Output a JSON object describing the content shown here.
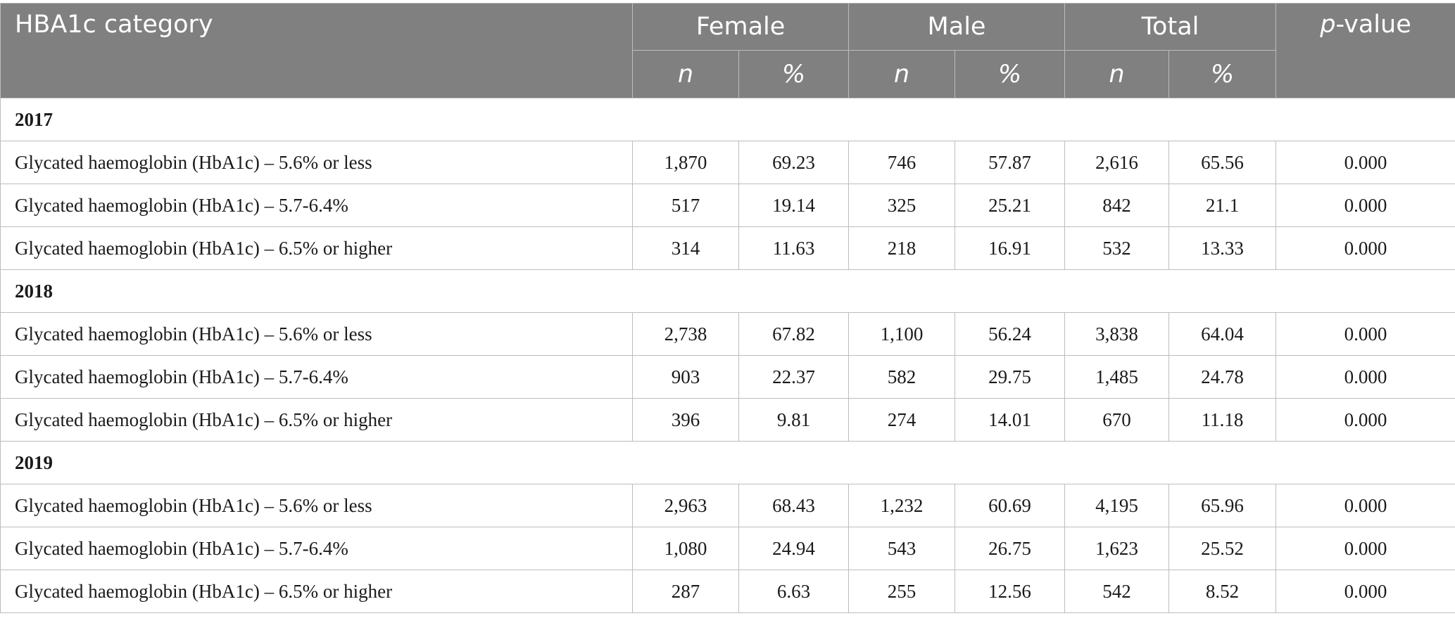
{
  "headers": {
    "category": "HBA1c category",
    "female": "Female",
    "male": "Male",
    "total": "Total",
    "pvalue_p": "p",
    "pvalue_rest": "-value",
    "n": "n",
    "pct": "%"
  },
  "groups": [
    {
      "year": "2017",
      "rows": [
        {
          "label": "Glycated haemoglobin (HbA1c) – 5.6% or less",
          "f_n": "1,870",
          "f_pct": "69.23",
          "m_n": "746",
          "m_pct": "57.87",
          "t_n": "2,616",
          "t_pct": "65.56",
          "p": "0.000"
        },
        {
          "label": "Glycated haemoglobin (HbA1c) – 5.7-6.4%",
          "f_n": "517",
          "f_pct": "19.14",
          "m_n": "325",
          "m_pct": "25.21",
          "t_n": "842",
          "t_pct": "21.1",
          "p": "0.000"
        },
        {
          "label": "Glycated haemoglobin (HbA1c) – 6.5% or higher",
          "f_n": "314",
          "f_pct": "11.63",
          "m_n": "218",
          "m_pct": "16.91",
          "t_n": "532",
          "t_pct": "13.33",
          "p": "0.000"
        }
      ]
    },
    {
      "year": "2018",
      "rows": [
        {
          "label": "Glycated haemoglobin (HbA1c) – 5.6% or less",
          "f_n": "2,738",
          "f_pct": "67.82",
          "m_n": "1,100",
          "m_pct": "56.24",
          "t_n": "3,838",
          "t_pct": "64.04",
          "p": "0.000"
        },
        {
          "label": "Glycated haemoglobin (HbA1c) – 5.7-6.4%",
          "f_n": "903",
          "f_pct": "22.37",
          "m_n": "582",
          "m_pct": "29.75",
          "t_n": "1,485",
          "t_pct": "24.78",
          "p": "0.000"
        },
        {
          "label": "Glycated haemoglobin (HbA1c) – 6.5% or higher",
          "f_n": "396",
          "f_pct": "9.81",
          "m_n": "274",
          "m_pct": "14.01",
          "t_n": "670",
          "t_pct": "11.18",
          "p": "0.000"
        }
      ]
    },
    {
      "year": "2019",
      "rows": [
        {
          "label": "Glycated haemoglobin (HbA1c) – 5.6% or less",
          "f_n": "2,963",
          "f_pct": "68.43",
          "m_n": "1,232",
          "m_pct": "60.69",
          "t_n": "4,195",
          "t_pct": "65.96",
          "p": "0.000"
        },
        {
          "label": "Glycated haemoglobin (HbA1c) – 5.7-6.4%",
          "f_n": "1,080",
          "f_pct": "24.94",
          "m_n": "543",
          "m_pct": "26.75",
          "t_n": "1,623",
          "t_pct": "25.52",
          "p": "0.000"
        },
        {
          "label": "Glycated haemoglobin (HbA1c) – 6.5% or higher",
          "f_n": "287",
          "f_pct": "6.63",
          "m_n": "255",
          "m_pct": "12.56",
          "t_n": "542",
          "t_pct": "8.52",
          "p": "0.000"
        }
      ]
    }
  ]
}
